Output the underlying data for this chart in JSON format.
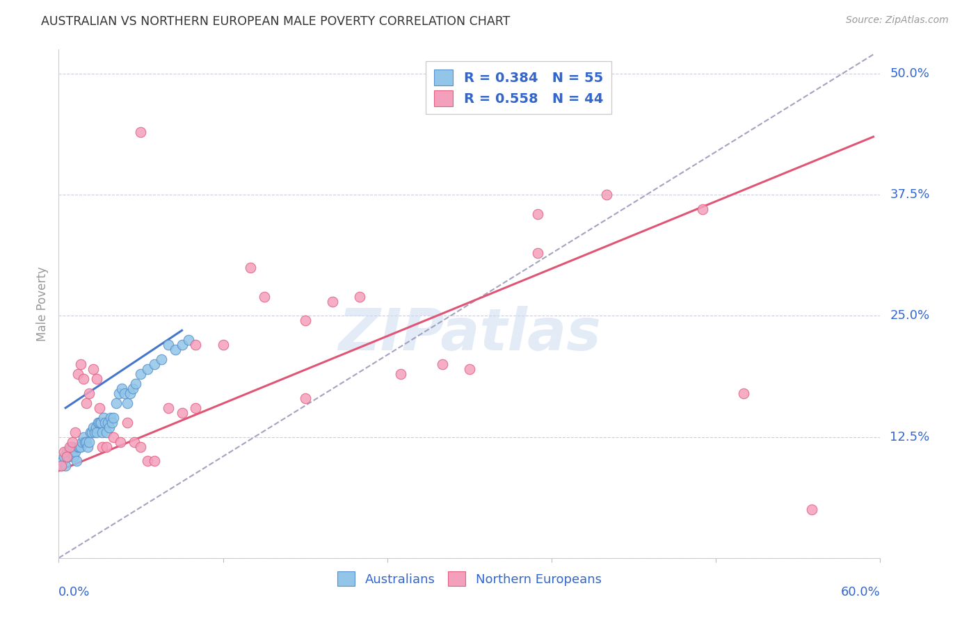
{
  "title": "AUSTRALIAN VS NORTHERN EUROPEAN MALE POVERTY CORRELATION CHART",
  "source": "Source: ZipAtlas.com",
  "ylabel": "Male Poverty",
  "yticks": [
    0.0,
    0.125,
    0.25,
    0.375,
    0.5
  ],
  "ytick_labels": [
    "",
    "12.5%",
    "25.0%",
    "37.5%",
    "50.0%"
  ],
  "xmin": 0.0,
  "xmax": 0.6,
  "ymin": 0.0,
  "ymax": 0.525,
  "watermark": "ZIPatlas",
  "legend_blue_r": "R = 0.384",
  "legend_blue_n": "N = 55",
  "legend_pink_r": "R = 0.558",
  "legend_pink_n": "N = 44",
  "blue_scatter_color": "#92c5e8",
  "pink_scatter_color": "#f4a0bc",
  "blue_edge_color": "#5590cc",
  "pink_edge_color": "#e06080",
  "blue_line_color": "#4477cc",
  "pink_line_color": "#e05575",
  "dashed_line_color": "#9999bb",
  "tick_label_color": "#3366cc",
  "background_color": "#ffffff",
  "grid_color": "#ccccdd",
  "australians_x": [
    0.002,
    0.003,
    0.004,
    0.005,
    0.006,
    0.007,
    0.008,
    0.009,
    0.01,
    0.011,
    0.012,
    0.013,
    0.014,
    0.015,
    0.016,
    0.017,
    0.018,
    0.019,
    0.02,
    0.021,
    0.022,
    0.023,
    0.024,
    0.025,
    0.026,
    0.027,
    0.028,
    0.029,
    0.03,
    0.031,
    0.032,
    0.033,
    0.034,
    0.035,
    0.036,
    0.037,
    0.038,
    0.039,
    0.04,
    0.042,
    0.044,
    0.046,
    0.048,
    0.05,
    0.052,
    0.054,
    0.056,
    0.06,
    0.065,
    0.07,
    0.075,
    0.08,
    0.085,
    0.09,
    0.095
  ],
  "australians_y": [
    0.095,
    0.1,
    0.105,
    0.095,
    0.11,
    0.105,
    0.11,
    0.115,
    0.115,
    0.105,
    0.11,
    0.1,
    0.115,
    0.115,
    0.115,
    0.12,
    0.125,
    0.12,
    0.12,
    0.115,
    0.12,
    0.13,
    0.13,
    0.135,
    0.13,
    0.135,
    0.13,
    0.14,
    0.14,
    0.14,
    0.13,
    0.145,
    0.14,
    0.13,
    0.14,
    0.135,
    0.145,
    0.14,
    0.145,
    0.16,
    0.17,
    0.175,
    0.17,
    0.16,
    0.17,
    0.175,
    0.18,
    0.19,
    0.195,
    0.2,
    0.205,
    0.22,
    0.215,
    0.22,
    0.225
  ],
  "northern_europeans_x": [
    0.002,
    0.004,
    0.006,
    0.008,
    0.01,
    0.012,
    0.014,
    0.016,
    0.018,
    0.02,
    0.022,
    0.025,
    0.028,
    0.03,
    0.032,
    0.035,
    0.04,
    0.045,
    0.05,
    0.055,
    0.06,
    0.065,
    0.07,
    0.09,
    0.1,
    0.12,
    0.15,
    0.18,
    0.2,
    0.22,
    0.25,
    0.28,
    0.3,
    0.35,
    0.4,
    0.5,
    0.08,
    0.1,
    0.14,
    0.18,
    0.35,
    0.47,
    0.06,
    0.55
  ],
  "northern_europeans_y": [
    0.095,
    0.11,
    0.105,
    0.115,
    0.12,
    0.13,
    0.19,
    0.2,
    0.185,
    0.16,
    0.17,
    0.195,
    0.185,
    0.155,
    0.115,
    0.115,
    0.125,
    0.12,
    0.14,
    0.12,
    0.115,
    0.1,
    0.1,
    0.15,
    0.155,
    0.22,
    0.27,
    0.165,
    0.265,
    0.27,
    0.19,
    0.2,
    0.195,
    0.315,
    0.375,
    0.17,
    0.155,
    0.22,
    0.3,
    0.245,
    0.355,
    0.36,
    0.44,
    0.05
  ],
  "blue_fit_x": [
    0.005,
    0.09
  ],
  "blue_fit_y": [
    0.155,
    0.235
  ],
  "pink_fit_x": [
    0.0,
    0.595
  ],
  "pink_fit_y": [
    0.09,
    0.435
  ],
  "dashed_fit_x": [
    0.0,
    0.595
  ],
  "dashed_fit_y": [
    0.0,
    0.52
  ]
}
